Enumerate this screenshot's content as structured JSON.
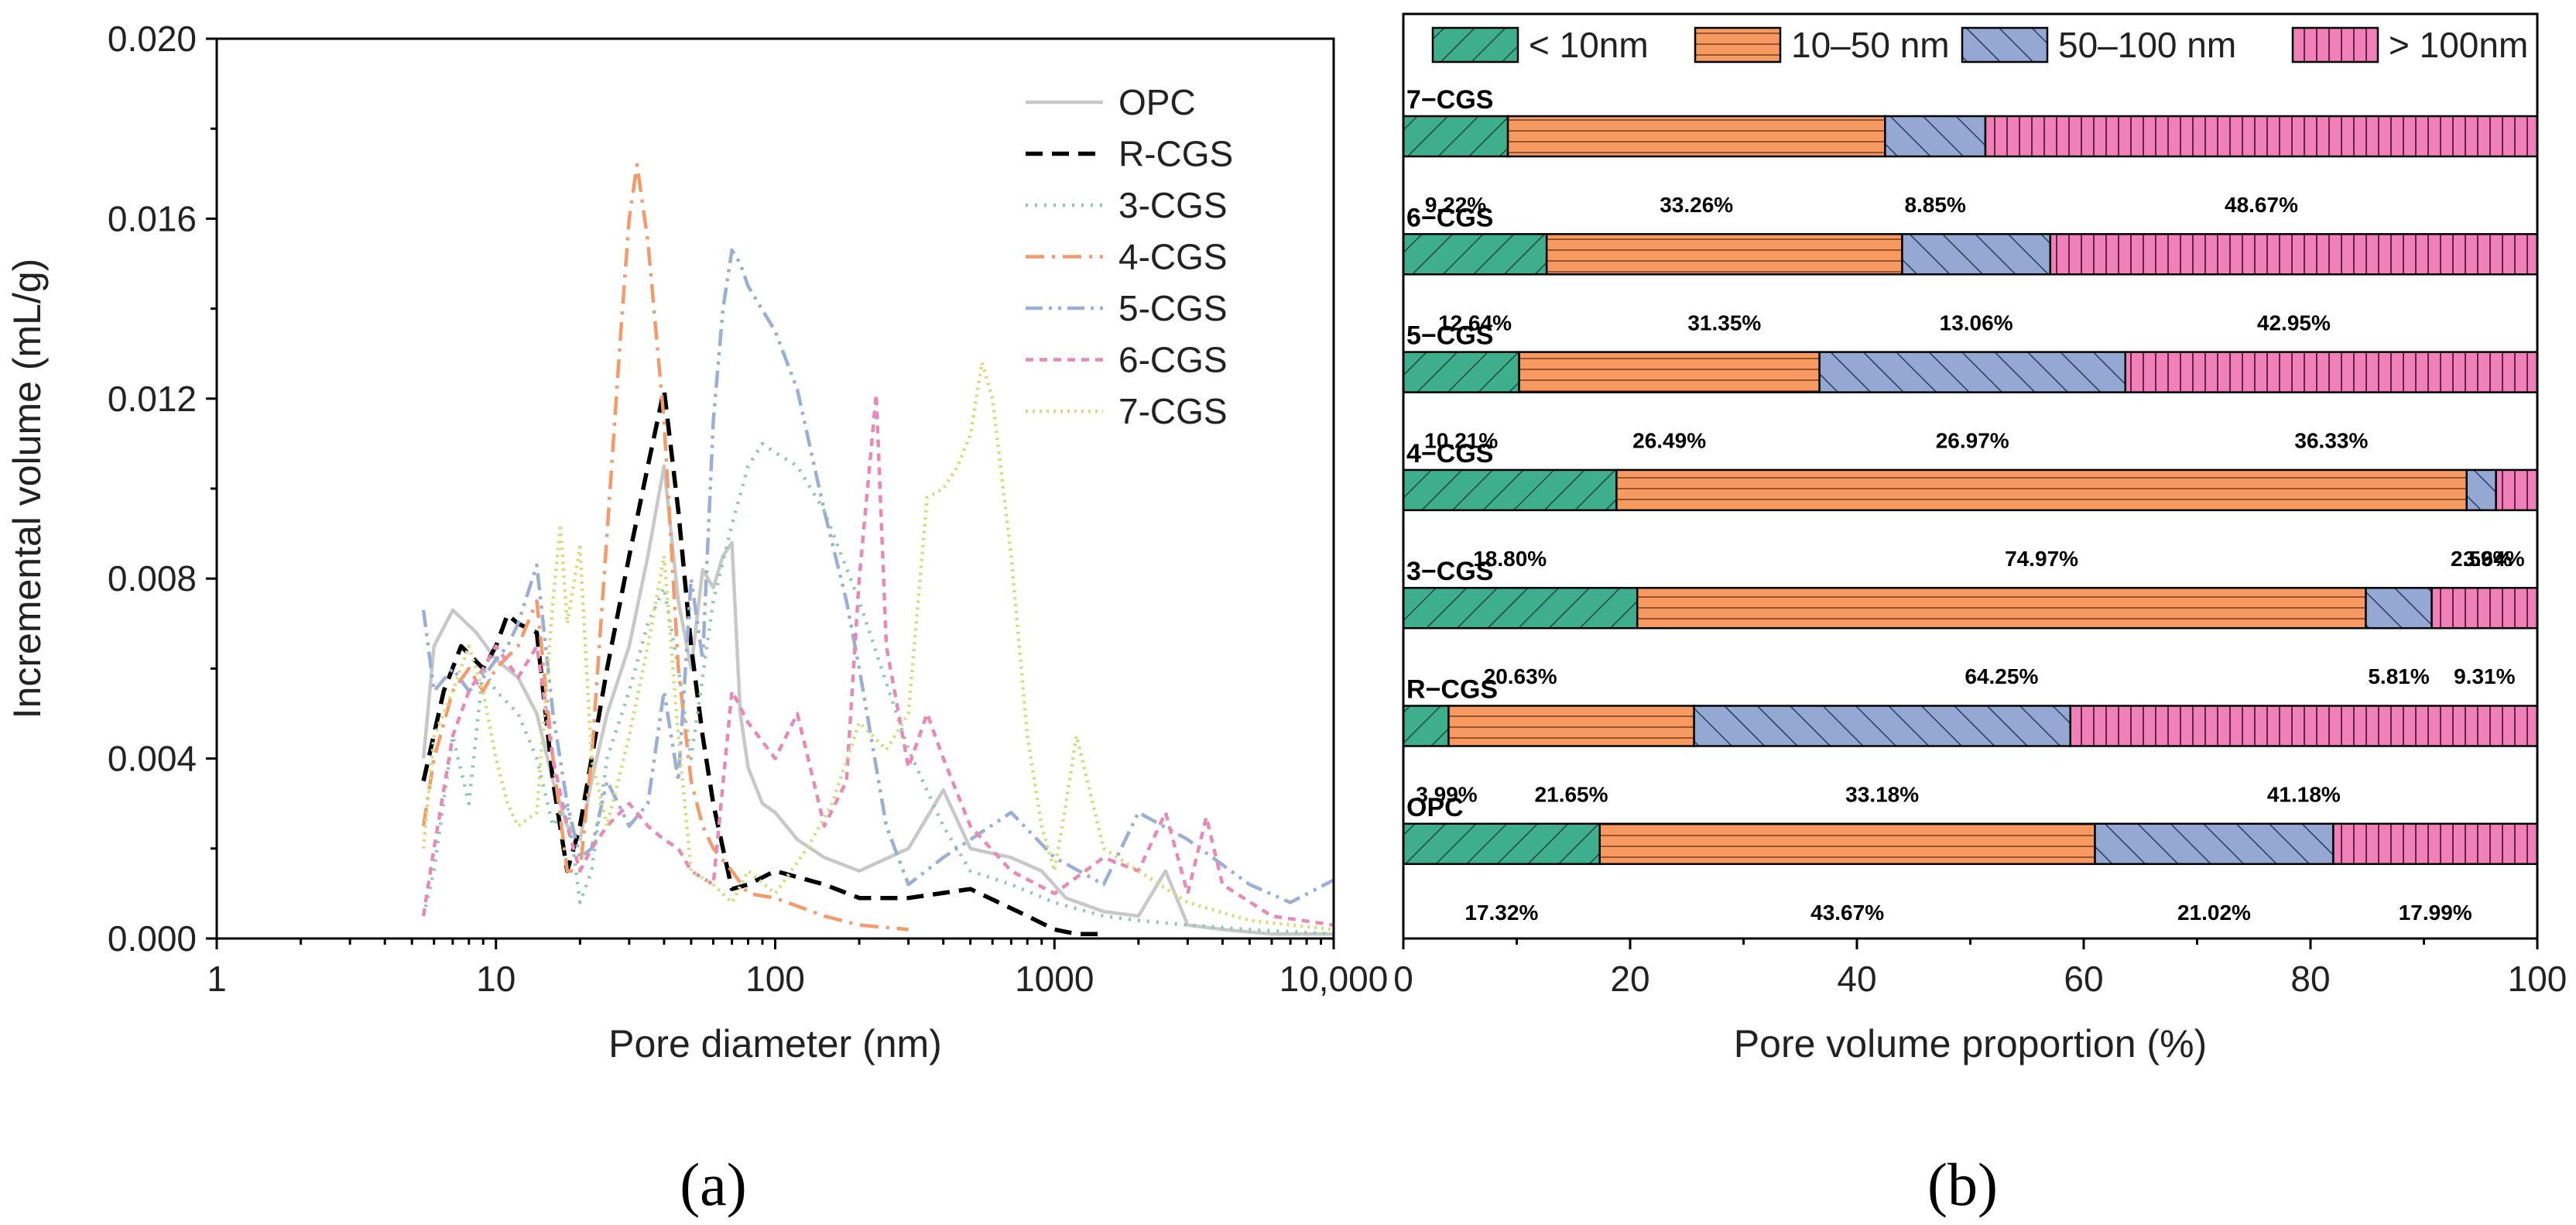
{
  "chart_data": [
    {
      "panel": "(a)",
      "type": "line",
      "xscale": "log",
      "xlabel": "Pore diameter (nm)",
      "ylabel": "Incremental volume (mL/g)",
      "xlim": [
        1,
        10000
      ],
      "ylim": [
        0,
        0.02
      ],
      "xticks": [
        1,
        10,
        100,
        1000,
        10000
      ],
      "xtick_labels": [
        "1",
        "10",
        "100",
        "1000",
        "10,000"
      ],
      "yticks": [
        0,
        0.004,
        0.008,
        0.012,
        0.016,
        0.02
      ],
      "ytick_labels": [
        "0.000",
        "0.004",
        "0.008",
        "0.012",
        "0.016",
        "0.020"
      ],
      "legend_position": "top-right",
      "series": [
        {
          "name": "OPC",
          "color": "#c8c8c8",
          "dash": "solid",
          "x": [
            5.5,
            6,
            7,
            8.5,
            10,
            12,
            14,
            16,
            18,
            20,
            22,
            25,
            30,
            35,
            40,
            45,
            50,
            55,
            60,
            65,
            70,
            75,
            80,
            90,
            100,
            120,
            150,
            200,
            300,
            400,
            500,
            700,
            900,
            1100,
            1500,
            2000,
            2500,
            3000,
            4000,
            6000,
            8000,
            10000
          ],
          "y": [
            0.004,
            0.0065,
            0.0073,
            0.0068,
            0.0062,
            0.0058,
            0.005,
            0.0035,
            0.0025,
            0.0022,
            0.0035,
            0.005,
            0.0065,
            0.0085,
            0.0105,
            0.0075,
            0.006,
            0.0082,
            0.0078,
            0.0085,
            0.0088,
            0.005,
            0.0038,
            0.003,
            0.0028,
            0.0022,
            0.0018,
            0.0015,
            0.002,
            0.0033,
            0.002,
            0.0018,
            0.0015,
            0.0009,
            0.0006,
            0.0005,
            0.0015,
            0.0003,
            0.0002,
            0.0001,
            0.0001,
            0.0001
          ]
        },
        {
          "name": "R-CGS",
          "color": "#000000",
          "dash": "dashed",
          "x": [
            5.5,
            6.5,
            7.5,
            9,
            10,
            11,
            12,
            14,
            16,
            18,
            20,
            22,
            25,
            30,
            35,
            40,
            45,
            50,
            55,
            60,
            65,
            70,
            80,
            100,
            150,
            200,
            300,
            500,
            800,
            1000,
            1200,
            1500
          ],
          "y": [
            0.0035,
            0.0055,
            0.0065,
            0.006,
            0.0065,
            0.0072,
            0.007,
            0.0068,
            0.0035,
            0.0015,
            0.0025,
            0.004,
            0.006,
            0.0085,
            0.0105,
            0.0122,
            0.0095,
            0.0065,
            0.0045,
            0.003,
            0.002,
            0.0011,
            0.0012,
            0.0015,
            0.0012,
            0.0009,
            0.0009,
            0.0011,
            0.0005,
            0.0002,
            0.0001,
            0.0001
          ]
        },
        {
          "name": "3-CGS",
          "color": "#8cc8b4",
          "dash": "dotted",
          "x": [
            5.5,
            6,
            7,
            8,
            9,
            10,
            12,
            14,
            16,
            18,
            20,
            22,
            25,
            30,
            35,
            40,
            45,
            50,
            60,
            70,
            80,
            90,
            100,
            120,
            150,
            200,
            300,
            400,
            500,
            700,
            1000,
            1500,
            2000,
            3000,
            5000,
            10000
          ],
          "y": [
            0.0005,
            0.0015,
            0.0045,
            0.003,
            0.006,
            0.0055,
            0.005,
            0.004,
            0.0025,
            0.003,
            0.0008,
            0.0015,
            0.004,
            0.0055,
            0.007,
            0.0078,
            0.006,
            0.004,
            0.0075,
            0.0092,
            0.0105,
            0.011,
            0.0108,
            0.0105,
            0.0095,
            0.0075,
            0.0042,
            0.0025,
            0.0015,
            0.0012,
            0.0008,
            0.0005,
            0.0004,
            0.0003,
            0.0002,
            0.0001
          ]
        },
        {
          "name": "4-CGS",
          "color": "#f59a6a",
          "dash": "dashdot",
          "x": [
            5.5,
            6,
            7,
            8,
            9,
            10,
            12,
            14,
            16,
            18,
            20,
            22,
            25,
            28,
            30,
            32,
            35,
            40,
            45,
            50,
            55,
            60,
            70,
            80,
            100,
            150,
            200,
            300
          ],
          "y": [
            0.0025,
            0.004,
            0.0055,
            0.006,
            0.0055,
            0.006,
            0.0065,
            0.0075,
            0.004,
            0.0015,
            0.0015,
            0.004,
            0.009,
            0.0135,
            0.016,
            0.0172,
            0.0155,
            0.0115,
            0.006,
            0.0035,
            0.0025,
            0.002,
            0.0015,
            0.001,
            0.0009,
            0.0005,
            0.0003,
            0.0002
          ]
        },
        {
          "name": "5-CGS",
          "color": "#9aaed6",
          "dash": "dashdotdot",
          "x": [
            5.5,
            6,
            7,
            8,
            9,
            10,
            11,
            12,
            14,
            16,
            18,
            20,
            22,
            25,
            30,
            35,
            40,
            45,
            50,
            55,
            60,
            65,
            70,
            75,
            80,
            100,
            120,
            150,
            180,
            200,
            250,
            300,
            400,
            500,
            700,
            1000,
            1500,
            2000,
            3000,
            5000,
            7000,
            10000
          ],
          "y": [
            0.0073,
            0.0055,
            0.006,
            0.0055,
            0.0058,
            0.0062,
            0.0065,
            0.007,
            0.0083,
            0.005,
            0.003,
            0.0018,
            0.002,
            0.0035,
            0.0025,
            0.003,
            0.0055,
            0.0035,
            0.008,
            0.0062,
            0.0115,
            0.014,
            0.0153,
            0.015,
            0.0145,
            0.0135,
            0.0122,
            0.0095,
            0.0075,
            0.006,
            0.0025,
            0.0012,
            0.0018,
            0.0022,
            0.0028,
            0.0018,
            0.0012,
            0.0028,
            0.0022,
            0.0012,
            0.0008,
            0.0013
          ]
        },
        {
          "name": "6-CGS",
          "color": "#e88ab6",
          "dash": "shortdash",
          "x": [
            5.5,
            6,
            7,
            8,
            9,
            10,
            12,
            14,
            16,
            18,
            20,
            22,
            25,
            30,
            35,
            40,
            45,
            50,
            60,
            70,
            80,
            100,
            120,
            150,
            180,
            200,
            230,
            250,
            300,
            350,
            400,
            500,
            700,
            1000,
            1500,
            2000,
            2500,
            3000,
            3500,
            4000,
            6000,
            10000
          ],
          "y": [
            0.0005,
            0.002,
            0.0045,
            0.0055,
            0.006,
            0.0065,
            0.0058,
            0.0065,
            0.004,
            0.0025,
            0.0015,
            0.002,
            0.0025,
            0.003,
            0.0025,
            0.0022,
            0.002,
            0.0015,
            0.0012,
            0.0055,
            0.0048,
            0.004,
            0.005,
            0.0025,
            0.0035,
            0.008,
            0.0121,
            0.0065,
            0.0038,
            0.005,
            0.004,
            0.0025,
            0.0015,
            0.001,
            0.0018,
            0.0015,
            0.0028,
            0.001,
            0.0027,
            0.0012,
            0.0005,
            0.0003
          ]
        },
        {
          "name": "7-CGS",
          "color": "#d6dc7a",
          "dash": "finedot",
          "x": [
            5.5,
            6,
            7,
            8,
            9,
            10,
            11,
            12,
            14,
            16,
            17,
            18,
            20,
            22,
            25,
            30,
            35,
            40,
            45,
            50,
            60,
            70,
            80,
            100,
            130,
            160,
            200,
            250,
            300,
            350,
            400,
            450,
            500,
            550,
            600,
            700,
            800,
            900,
            1000,
            1100,
            1200,
            1500,
            2000,
            3000,
            5000,
            10000
          ],
          "y": [
            0.002,
            0.0045,
            0.0055,
            0.0065,
            0.0055,
            0.004,
            0.003,
            0.0025,
            0.0028,
            0.0075,
            0.0092,
            0.007,
            0.0087,
            0.004,
            0.0025,
            0.0045,
            0.0065,
            0.0085,
            0.0045,
            0.0015,
            0.0012,
            0.0008,
            0.0015,
            0.001,
            0.002,
            0.003,
            0.0048,
            0.0042,
            0.005,
            0.0098,
            0.01,
            0.0105,
            0.0112,
            0.0128,
            0.012,
            0.0085,
            0.0045,
            0.0025,
            0.0015,
            0.003,
            0.0045,
            0.002,
            0.0015,
            0.0008,
            0.0004,
            0.0002
          ]
        }
      ]
    },
    {
      "panel": "(b)",
      "type": "bar",
      "orientation": "horizontal",
      "stacked": true,
      "xlabel": "Pore volume proportion (%)",
      "xlim": [
        0,
        100
      ],
      "xticks": [
        0,
        20,
        40,
        60,
        80,
        100
      ],
      "xtick_labels": [
        "0",
        "20",
        "40",
        "60",
        "80",
        "100"
      ],
      "legend_position": "top",
      "legend": [
        {
          "name": "< 10nm",
          "color": "#3fae8c",
          "pattern": "diag-fwd"
        },
        {
          "name": "10–50 nm",
          "color": "#f79a62",
          "pattern": "horiz"
        },
        {
          "name": "50–100 nm",
          "color": "#93a8d2",
          "pattern": "diag-back"
        },
        {
          "name": "> 100nm",
          "color": "#ef80b8",
          "pattern": "vert"
        }
      ],
      "categories": [
        "7−CGS",
        "6−CGS",
        "5−CGS",
        "4−CGS",
        "3−CGS",
        "R−CGS",
        "OPC"
      ],
      "series": [
        {
          "name": "< 10nm",
          "values": [
            9.22,
            12.64,
            10.21,
            18.8,
            20.63,
            3.99,
            17.32
          ]
        },
        {
          "name": "10–50 nm",
          "values": [
            33.26,
            31.35,
            26.49,
            74.97,
            64.25,
            21.65,
            43.67
          ]
        },
        {
          "name": "50–100 nm",
          "values": [
            8.85,
            13.06,
            26.97,
            2.59,
            5.81,
            33.18,
            21.02
          ]
        },
        {
          "name": "> 100nm",
          "values": [
            48.67,
            42.95,
            36.33,
            3.64,
            9.31,
            41.18,
            17.99
          ]
        }
      ],
      "value_labels": [
        [
          "9.22%",
          "33.26%",
          "8.85%",
          "48.67%"
        ],
        [
          "12.64%",
          "31.35%",
          "13.06%",
          "42.95%"
        ],
        [
          "10.21%",
          "26.49%",
          "26.97%",
          "36.33%"
        ],
        [
          "18.80%",
          "74.97%",
          "2.59%",
          "3.64%"
        ],
        [
          "20.63%",
          "64.25%",
          "5.81%",
          "9.31%"
        ],
        [
          "3.99%",
          "21.65%",
          "33.18%",
          "41.18%"
        ],
        [
          "17.32%",
          "43.67%",
          "21.02%",
          "17.99%"
        ]
      ]
    }
  ],
  "panel_labels": {
    "a": "(a)",
    "b": "(b)"
  }
}
